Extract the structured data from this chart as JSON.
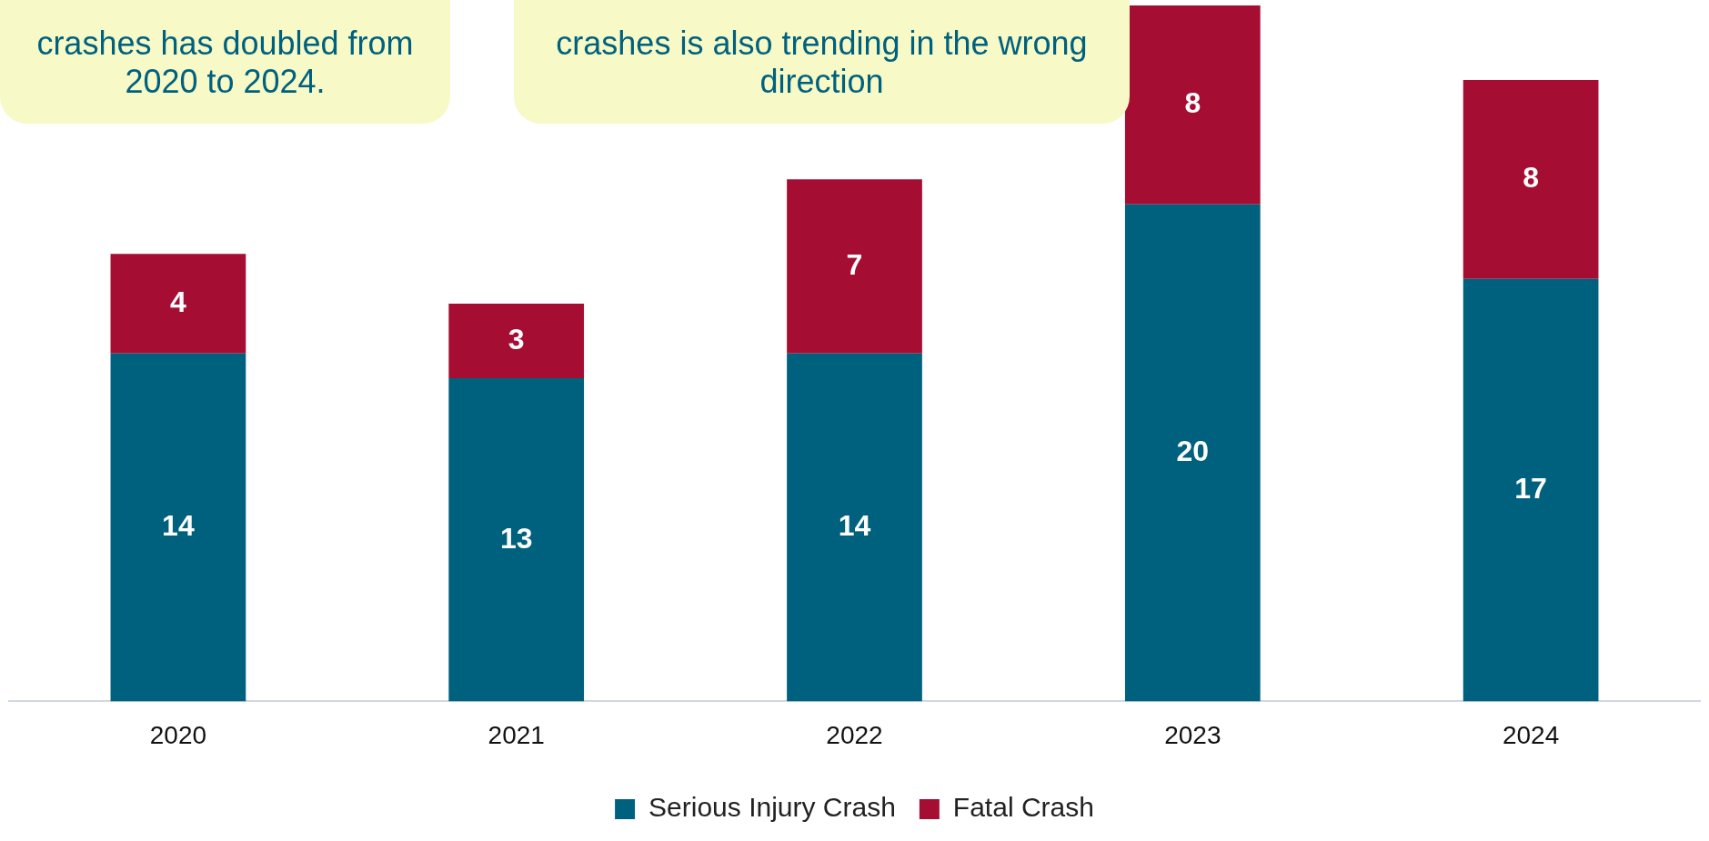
{
  "chart_data": {
    "type": "bar",
    "stacked": true,
    "data_labels": true,
    "legend": "bottom",
    "grid": false,
    "categories": [
      "2020",
      "2021",
      "2022",
      "2023",
      "2024"
    ],
    "series": [
      {
        "name": "Serious Injury Crash",
        "color": "#00617f",
        "values": [
          14,
          13,
          14,
          20,
          17
        ]
      },
      {
        "name": "Fatal Crash",
        "color": "#a50d33",
        "values": [
          4,
          3,
          7,
          8,
          8
        ]
      }
    ],
    "annotations": [
      "crashes has doubled from 2020 to 2024.",
      "crashes is also trending in the wrong direction"
    ]
  }
}
